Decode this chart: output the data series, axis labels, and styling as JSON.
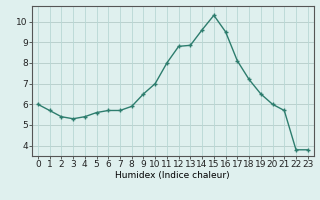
{
  "x": [
    0,
    1,
    2,
    3,
    4,
    5,
    6,
    7,
    8,
    9,
    10,
    11,
    12,
    13,
    14,
    15,
    16,
    17,
    18,
    19,
    20,
    21,
    22,
    23
  ],
  "y": [
    6.0,
    5.7,
    5.4,
    5.3,
    5.4,
    5.6,
    5.7,
    5.7,
    5.9,
    6.5,
    7.0,
    8.0,
    8.8,
    8.85,
    9.6,
    10.3,
    9.5,
    8.1,
    7.2,
    6.5,
    6.0,
    5.7,
    3.8,
    3.8
  ],
  "line_color": "#2d7d6e",
  "marker": "+",
  "marker_size": 3,
  "linewidth": 1.0,
  "background_color": "#dff0ee",
  "grid_color": "#b8d8d4",
  "grid_color_major": "#c8a0a0",
  "xlabel": "Humidex (Indice chaleur)",
  "ylabel": "",
  "title": "",
  "xlim": [
    -0.5,
    23.5
  ],
  "ylim": [
    3.5,
    10.75
  ],
  "yticks": [
    4,
    5,
    6,
    7,
    8,
    9,
    10
  ],
  "xticks": [
    0,
    1,
    2,
    3,
    4,
    5,
    6,
    7,
    8,
    9,
    10,
    11,
    12,
    13,
    14,
    15,
    16,
    17,
    18,
    19,
    20,
    21,
    22,
    23
  ],
  "xlabel_fontsize": 6.5,
  "tick_fontsize": 6.5
}
